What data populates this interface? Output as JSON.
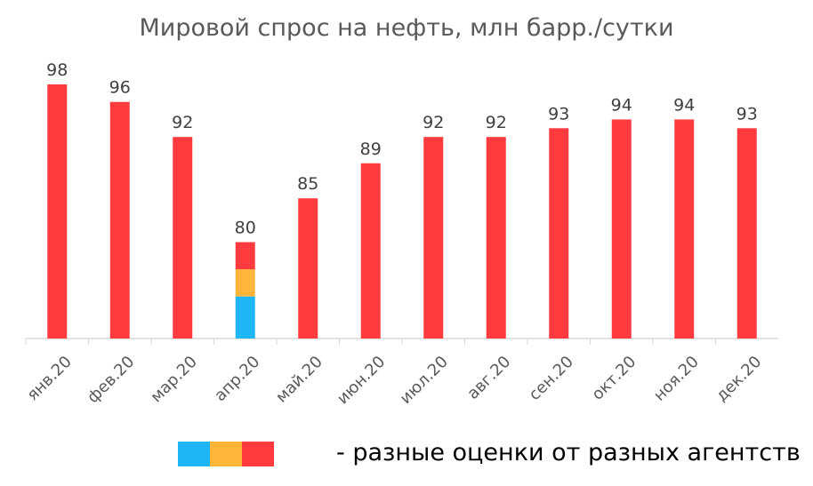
{
  "chart_data": {
    "type": "bar",
    "title": "Мировой спрос на нефть, млн барр./сутки",
    "categories": [
      "янв.20",
      "фев.20",
      "мар.20",
      "апр.20",
      "май.20",
      "июн.20",
      "июл.20",
      "авг.20",
      "сен.20",
      "окт.20",
      "ноя.20",
      "дек.20"
    ],
    "values": [
      98,
      96,
      92,
      80,
      85,
      89,
      92,
      92,
      93,
      94,
      94,
      93
    ],
    "ylim": [
      69,
      98
    ],
    "bar_color": "#ff3b3f",
    "stacked_category": "апр.20",
    "stacked_segments": [
      {
        "color": "#1fb6f7",
        "to": 73.8
      },
      {
        "color": "#fdb53a",
        "to": 76.9
      },
      {
        "color": "#ff3b3f",
        "to": 80
      }
    ],
    "legend": {
      "colors": [
        "#1fb6f7",
        "#fdb53a",
        "#ff3b3f"
      ],
      "label": "- разные оценки от разных агентств"
    }
  }
}
